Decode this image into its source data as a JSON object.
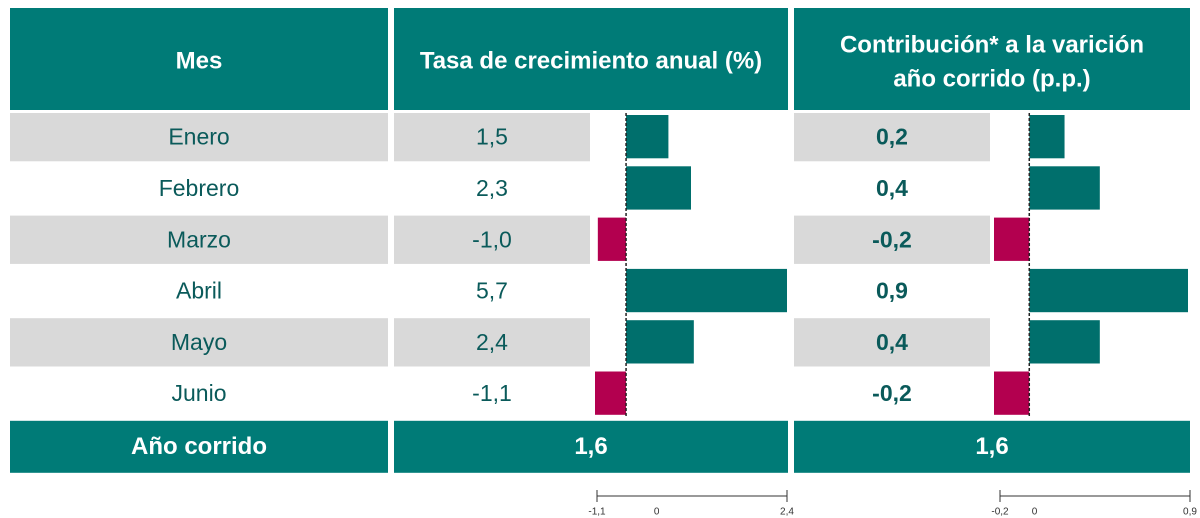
{
  "table": {
    "header": {
      "month": "Mes",
      "growth": "Tasa de crecimiento anual (%)",
      "contribution": [
        "Contribución* a la varición",
        "año corrido (p.p.)"
      ]
    },
    "rows": [
      {
        "month": "Enero",
        "growth": 1.5,
        "growth_label": "1,5",
        "contribution": 0.2,
        "contribution_label": "0,2"
      },
      {
        "month": "Febrero",
        "growth": 2.3,
        "growth_label": "2,3",
        "contribution": 0.4,
        "contribution_label": "0,4"
      },
      {
        "month": "Marzo",
        "growth": -1.0,
        "growth_label": "-1,0",
        "contribution": -0.2,
        "contribution_label": "-0,2"
      },
      {
        "month": "Abril",
        "growth": 5.7,
        "growth_label": "5,7",
        "contribution": 0.9,
        "contribution_label": "0,9"
      },
      {
        "month": "Mayo",
        "growth": 2.4,
        "growth_label": "2,4",
        "contribution": 0.4,
        "contribution_label": "0,4"
      },
      {
        "month": "Junio",
        "growth": -1.1,
        "growth_label": "-1,1",
        "contribution": -0.2,
        "contribution_label": "-0,2"
      }
    ],
    "total": {
      "month": "Año corrido",
      "growth": "1,6",
      "contribution": "1,6"
    },
    "growth_bars": {
      "xlim": [
        -1.1,
        5.7
      ],
      "ticks": [
        {
          "value": -1.1,
          "label": "-1,1"
        },
        0,
        {
          "value": 2.4,
          "label": "2,4"
        }
      ]
    },
    "contribution_bars": {
      "xlim": [
        -0.2,
        0.9
      ],
      "ticks": [
        {
          "value": -0.2,
          "label": "-0,2"
        },
        0,
        {
          "value": 0.9,
          "label": "0,9"
        }
      ]
    },
    "colors": {
      "header": "#007b77",
      "positive": "#006f6c",
      "negative": "#b3004f",
      "stripe": "#d9d9d9"
    }
  }
}
